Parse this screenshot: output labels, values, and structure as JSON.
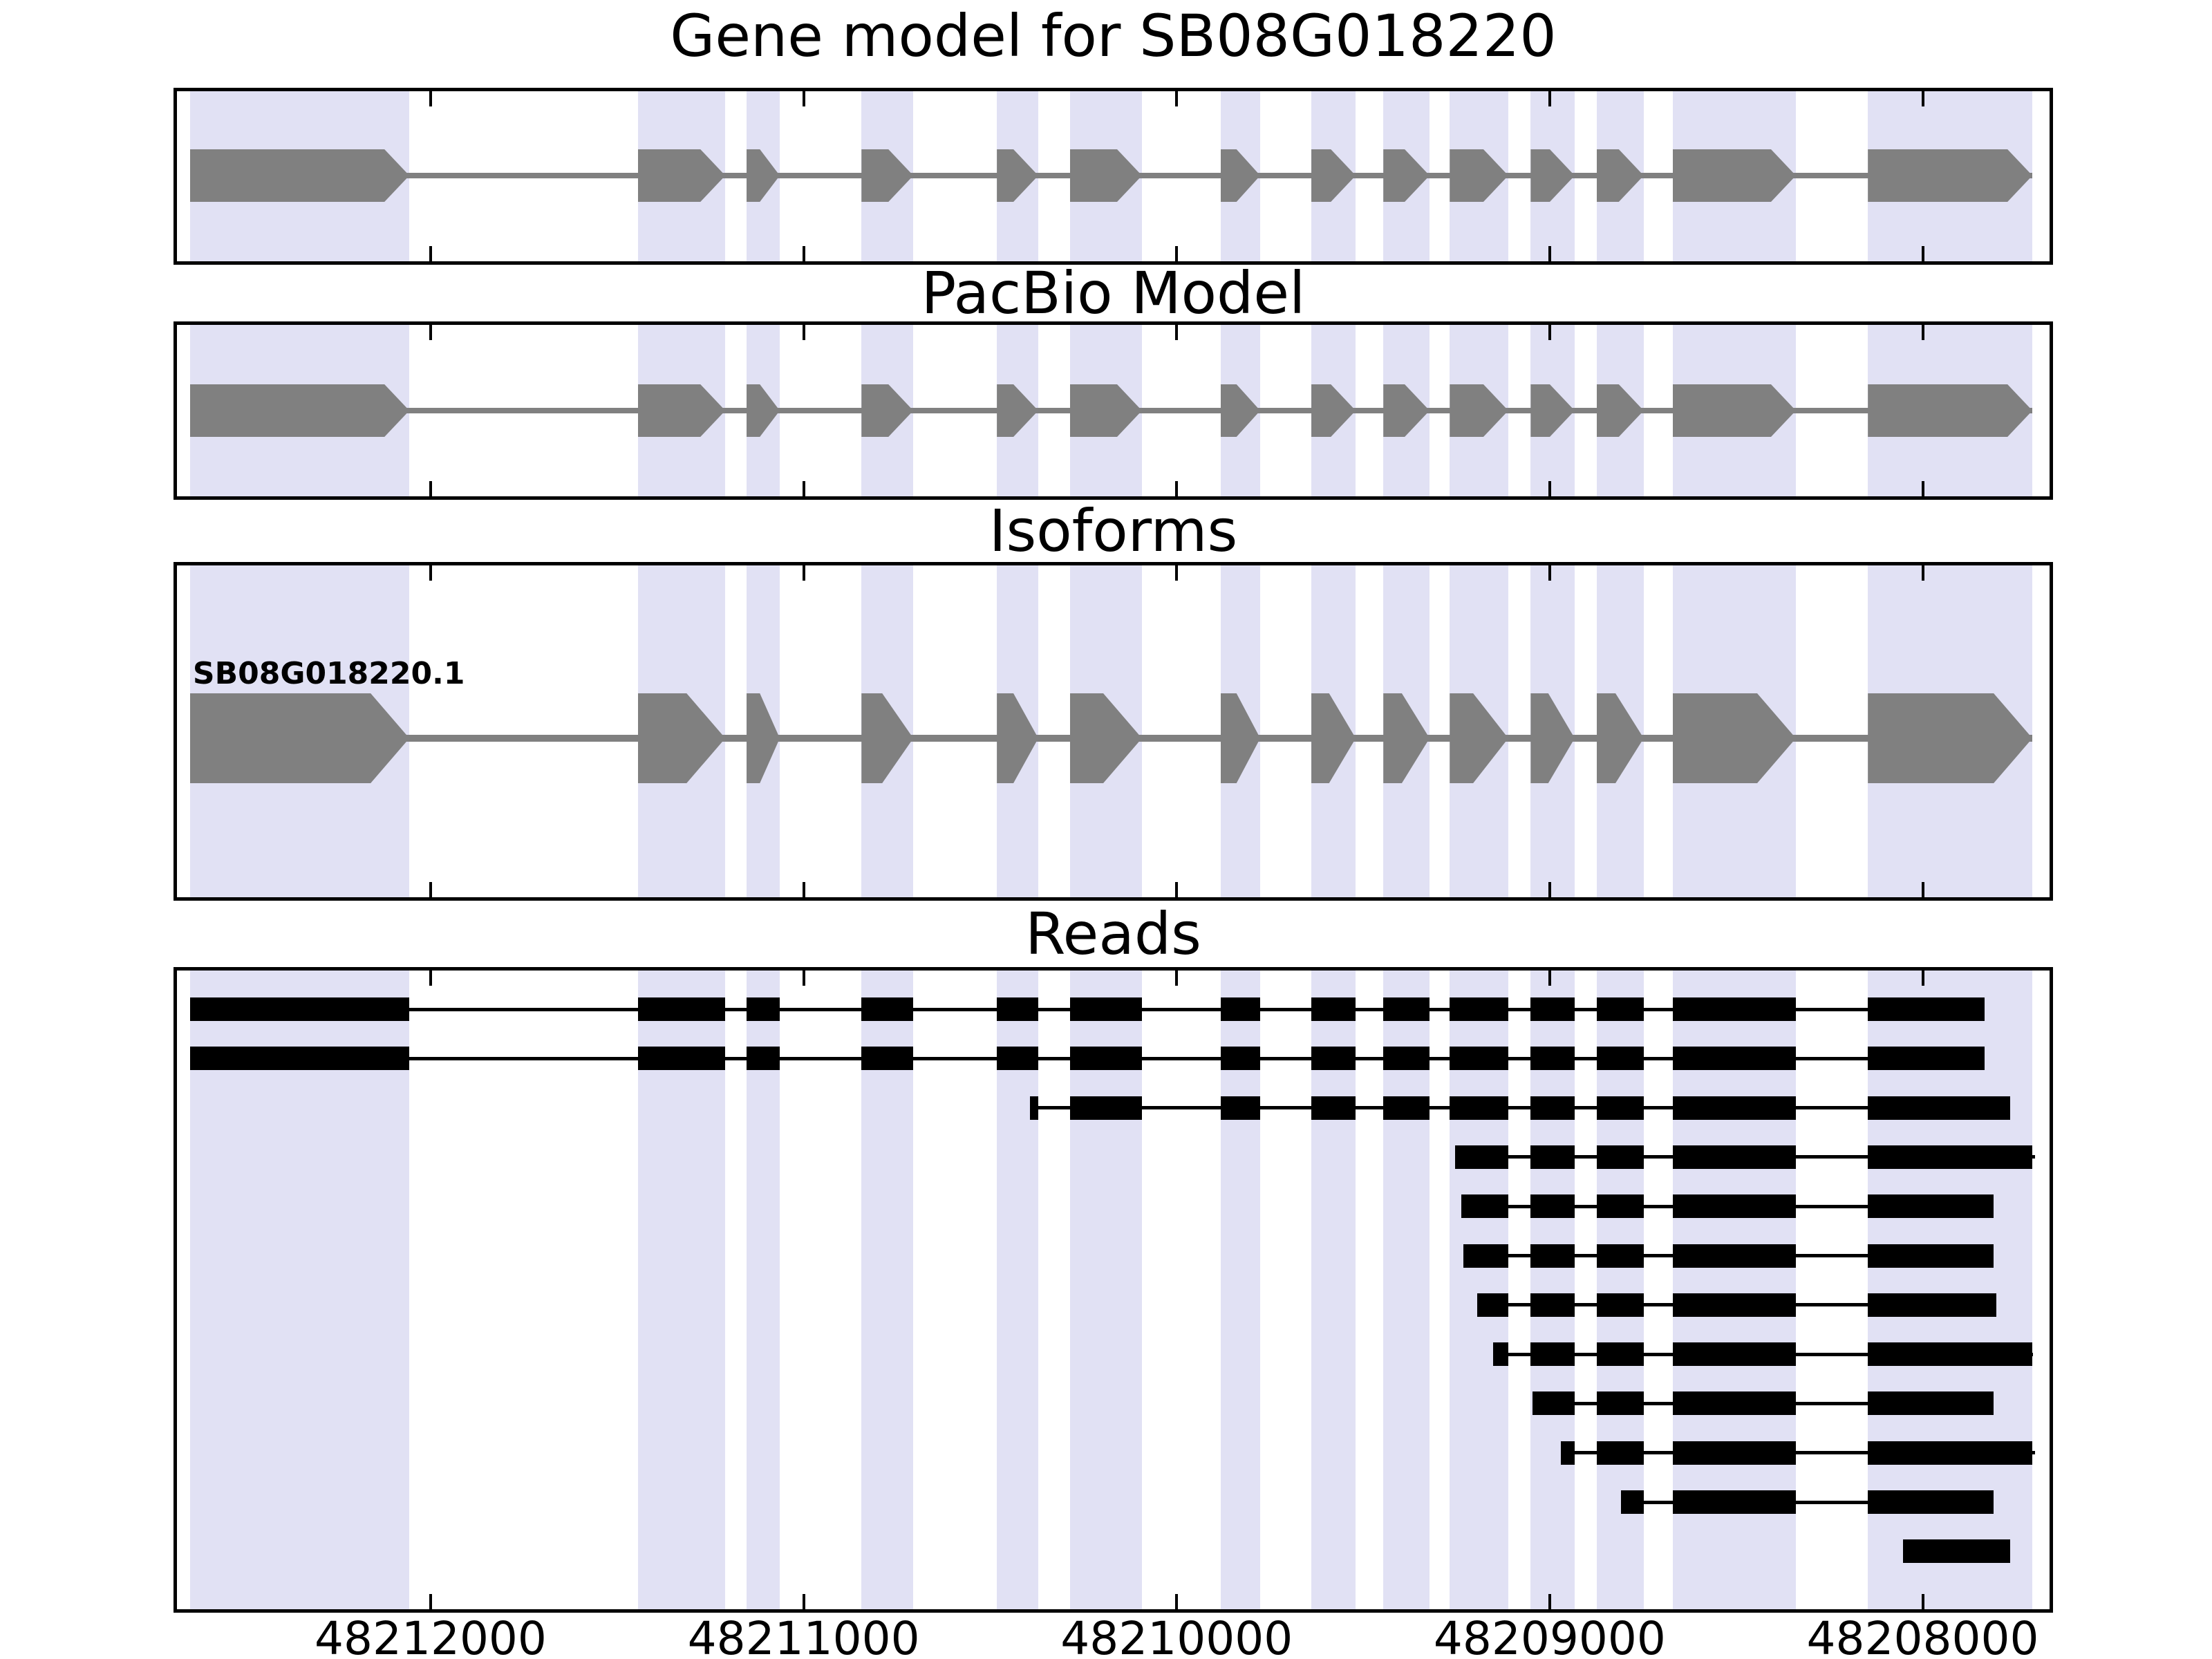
{
  "colors": {
    "background": "#ffffff",
    "highlight_band": "#e1e1f4",
    "model_feature": "#808080",
    "read_feature": "#000000",
    "panel_border": "#000000",
    "text": "#000000"
  },
  "panels": [
    {
      "title": "Gene model for SB08G018220"
    },
    {
      "title": "PacBio Model"
    },
    {
      "title": "Isoforms"
    },
    {
      "title": "Reads"
    }
  ],
  "chart_data": {
    "type": "gene-model-tracks",
    "title": "Gene model for SB08G018220",
    "gene_name": "SB08G018220",
    "track_titles": [
      "Gene model for SB08G018220",
      "PacBio Model",
      "Isoforms",
      "Reads"
    ],
    "x_axis": {
      "reversed": true,
      "left_value": 48212680,
      "right_value": 48207660,
      "ticks": [
        48212000,
        48211000,
        48210000,
        48209000,
        48208000
      ],
      "tick_labels": [
        "48212000",
        "48211000",
        "48210000",
        "48209000",
        "48208000"
      ],
      "grid": false
    },
    "exons": [
      [
        48212645,
        48212057
      ],
      [
        48211444,
        48211210
      ],
      [
        48211153,
        48211064
      ],
      [
        48210845,
        48210706
      ],
      [
        48210482,
        48210371
      ],
      [
        48210286,
        48210093
      ],
      [
        48209882,
        48209776
      ],
      [
        48209639,
        48209520
      ],
      [
        48209446,
        48209322
      ],
      [
        48209268,
        48209111
      ],
      [
        48209051,
        48208933
      ],
      [
        48208874,
        48208748
      ],
      [
        48208670,
        48208340
      ],
      [
        48208147,
        48207706
      ]
    ],
    "isoforms": [
      {
        "label": "SB08G018220.1"
      }
    ],
    "reads": [
      {
        "start": 48212645,
        "end": 48207834
      },
      {
        "start": 48212645,
        "end": 48207834
      },
      {
        "start": 48210393,
        "end": 48207766
      },
      {
        "start": 48209253,
        "end": 48207699
      },
      {
        "start": 48209237,
        "end": 48207810
      },
      {
        "start": 48209231,
        "end": 48207810
      },
      {
        "start": 48209194,
        "end": 48207803
      },
      {
        "start": 48209151,
        "end": 48207705
      },
      {
        "start": 48209046,
        "end": 48207810
      },
      {
        "start": 48208970,
        "end": 48207699
      },
      {
        "start": 48208809,
        "end": 48207810
      },
      {
        "start": 48208052,
        "end": 48207766
      }
    ]
  }
}
